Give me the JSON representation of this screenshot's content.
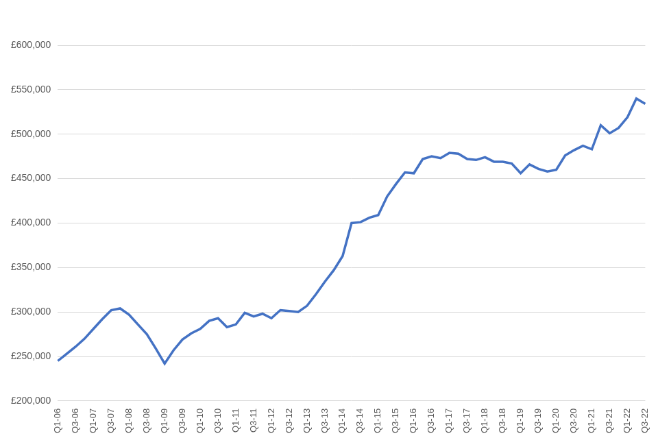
{
  "chart_data": {
    "type": "line",
    "categories": [
      "Q1-06",
      null,
      "Q3-06",
      null,
      "Q1-07",
      null,
      "Q3-07",
      null,
      "Q1-08",
      null,
      "Q3-08",
      null,
      "Q1-09",
      null,
      "Q3-09",
      null,
      "Q1-10",
      null,
      "Q3-10",
      null,
      "Q1-11",
      null,
      "Q3-11",
      null,
      "Q1-12",
      null,
      "Q3-12",
      null,
      "Q1-13",
      null,
      "Q3-13",
      null,
      "Q1-14",
      null,
      "Q3-14",
      null,
      "Q1-15",
      null,
      "Q3-15",
      null,
      "Q1-16",
      null,
      "Q3-16",
      null,
      "Q1-17",
      null,
      "Q3-17",
      null,
      "Q1-18",
      null,
      "Q3-18",
      null,
      "Q1-19",
      null,
      "Q3-19",
      null,
      "Q1-20",
      null,
      "Q3-20",
      null,
      "Q1-21",
      null,
      "Q3-21",
      null,
      "Q1-22",
      null,
      "Q3-22"
    ],
    "values": [
      245000,
      253000,
      261000,
      270000,
      281000,
      292000,
      302000,
      304000,
      297000,
      286000,
      275000,
      259000,
      242000,
      257000,
      269000,
      276000,
      281000,
      290000,
      293000,
      283000,
      286000,
      299000,
      295000,
      298000,
      293000,
      302000,
      301000,
      300000,
      307000,
      320000,
      334000,
      347000,
      363000,
      400000,
      401000,
      406000,
      409000,
      430000,
      444000,
      457000,
      456000,
      472000,
      475000,
      473000,
      479000,
      478000,
      472000,
      471000,
      474000,
      469000,
      469000,
      467000,
      456000,
      466000,
      461000,
      458000,
      460000,
      476000,
      482000,
      487000,
      483000,
      510000,
      501000,
      507000,
      519000,
      540000,
      534000
    ],
    "color": "#4472c4",
    "ylim": [
      200000,
      600000
    ],
    "yticks": [
      {
        "value": 200000,
        "label": "£200,000"
      },
      {
        "value": 250000,
        "label": "£250,000"
      },
      {
        "value": 300000,
        "label": "£300,000"
      },
      {
        "value": 350000,
        "label": "£350,000"
      },
      {
        "value": 400000,
        "label": "£400,000"
      },
      {
        "value": 450000,
        "label": "£450,000"
      },
      {
        "value": 500000,
        "label": "£500,000"
      },
      {
        "value": 550000,
        "label": "£550,000"
      },
      {
        "value": 600000,
        "label": "£600,000"
      }
    ],
    "grid": true
  }
}
